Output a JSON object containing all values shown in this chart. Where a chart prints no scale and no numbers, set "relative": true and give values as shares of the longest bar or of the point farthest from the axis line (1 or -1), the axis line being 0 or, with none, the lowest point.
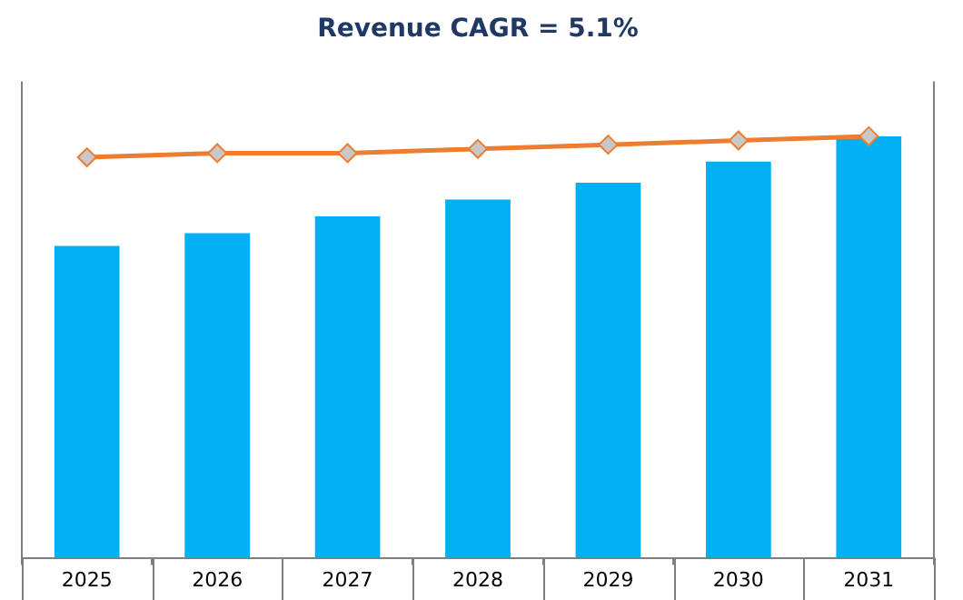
{
  "chart_data": {
    "type": "bar",
    "title": "Revenue CAGR = 5.1%",
    "relative": true,
    "categories": [
      "2025",
      "2026",
      "2027",
      "2028",
      "2029",
      "2030",
      "2031"
    ],
    "series": [
      {
        "color": "#00b0f0",
        "values": [
          0.74,
          0.77,
          0.81,
          0.85,
          0.89,
          0.94,
          1.0
        ]
      },
      {
        "type": "line",
        "color": "#ed7d31",
        "values": [
          0.95,
          0.96,
          0.96,
          0.97,
          0.98,
          0.99,
          1.0
        ],
        "marker": "diamond"
      }
    ],
    "grid": false,
    "legend": false
  }
}
